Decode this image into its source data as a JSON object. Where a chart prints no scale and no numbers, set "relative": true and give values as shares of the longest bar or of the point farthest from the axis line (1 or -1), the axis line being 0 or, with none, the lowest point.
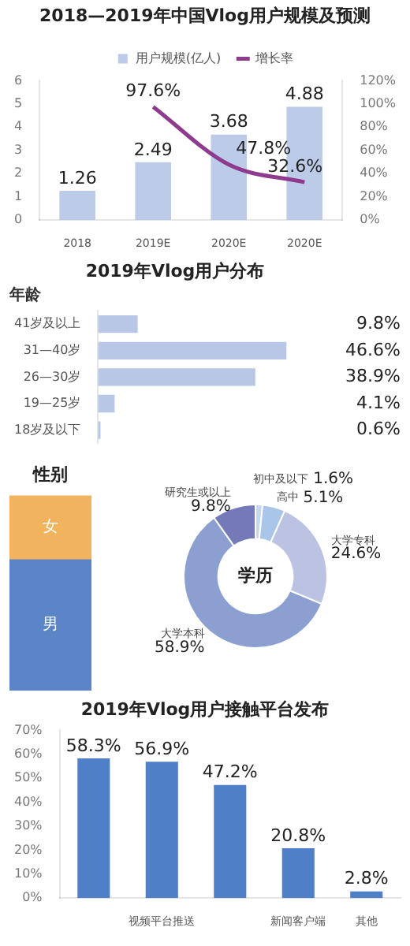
{
  "chart_data": [
    {
      "type": "bar",
      "title": "2018—2019年中国Vlog用户规模及预测",
      "categories": [
        "2018",
        "2019E",
        "2020E",
        "2020E"
      ],
      "series": [
        {
          "name": "用户规模(亿人)",
          "color": "#bccbe8",
          "values": [
            1.26,
            2.49,
            3.68,
            4.88
          ],
          "value_labels": [
            "1.26",
            "2.49",
            "3.68",
            "4.88"
          ]
        },
        {
          "name": "增长率",
          "type": "line",
          "axis": "y2",
          "color": "#8e3a8e",
          "values": [
            null,
            97.6,
            47.8,
            32.6
          ],
          "value_labels": [
            null,
            "97.6%",
            "47.8%",
            "32.6%"
          ]
        }
      ],
      "ylim": [
        0,
        6
      ],
      "yticks": [
        0,
        1,
        2,
        3,
        4,
        5,
        6
      ],
      "y2lim": [
        0,
        120
      ],
      "y2ticks": [
        {
          "value": 0,
          "label": "0%"
        },
        {
          "value": 20,
          "label": "20%"
        },
        {
          "value": 40,
          "label": "40%"
        },
        {
          "value": 60,
          "label": "60%"
        },
        {
          "value": 80,
          "label": "80%"
        },
        {
          "value": 100,
          "label": "100%"
        },
        {
          "value": 120,
          "label": "120%"
        }
      ],
      "grid": false,
      "legend": "top",
      "marker": "none"
    },
    {
      "type": "bar",
      "orientation": "horizontal",
      "title": "2019年Vlog用户分布",
      "subtitle": "年龄",
      "categories": [
        "41岁及以上",
        "31—40岁",
        "26—30岁",
        "19—25岁",
        "18岁及以下"
      ],
      "values": [
        9.8,
        46.6,
        38.9,
        4.1,
        0.6
      ],
      "value_labels": [
        "9.8%",
        "46.6%",
        "38.9%",
        "4.1%",
        "0.6%"
      ],
      "color": "#b8c7e6",
      "tick_labels": "y",
      "grid": false
    },
    {
      "type": "bar",
      "title": "性别",
      "relative": true,
      "stacked": true,
      "categories": [
        null
      ],
      "series": [
        {
          "name": "男",
          "color": "#5b85c6",
          "values": [
            0.67
          ]
        },
        {
          "name": "女",
          "color": "#f2b35e",
          "values": [
            0.33
          ]
        }
      ],
      "tick_labels": false,
      "grid": false
    },
    {
      "type": "donut",
      "title": "学历",
      "categories": [
        "初中及以下",
        "高中",
        "大学专科",
        "大学本科",
        "研究生或以上"
      ],
      "values": [
        1.6,
        5.1,
        24.6,
        58.9,
        9.8
      ],
      "value_labels": [
        "1.6%",
        "5.1%",
        "24.6%",
        "58.9%",
        "9.8%"
      ],
      "colors": [
        "#c5d9ee",
        "#a9c6e8",
        "#bcc3e2",
        "#8b9fd0",
        "#7479b8"
      ]
    },
    {
      "type": "bar",
      "title": "2019年Vlog用户接触平台发布",
      "categories": [
        null,
        "视频平台推送",
        null,
        "新闻客户端",
        "其他"
      ],
      "values": [
        58.3,
        56.9,
        47.2,
        20.8,
        2.8
      ],
      "value_labels": [
        "58.3%",
        "56.9%",
        "47.2%",
        "20.8%",
        "2.8%"
      ],
      "color": "#4f7fc6",
      "ylim": [
        0,
        70
      ],
      "yticks": [
        {
          "value": 0,
          "label": "0%"
        },
        {
          "value": 10,
          "label": "10%"
        },
        {
          "value": 20,
          "label": "20%"
        },
        {
          "value": 30,
          "label": "30%"
        },
        {
          "value": 40,
          "label": "40%"
        },
        {
          "value": 50,
          "label": "50%"
        },
        {
          "value": 60,
          "label": "60%"
        },
        {
          "value": 70,
          "label": "70%"
        }
      ],
      "grid": false
    }
  ]
}
